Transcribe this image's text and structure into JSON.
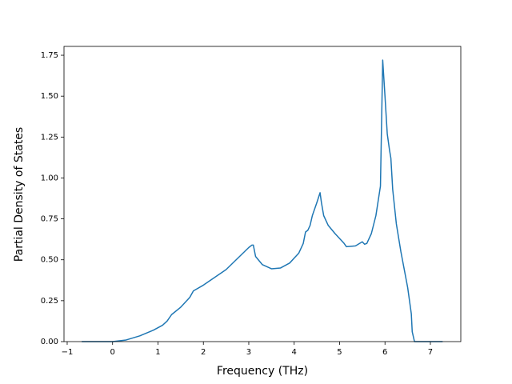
{
  "chart_data": {
    "type": "line",
    "xlabel": "Frequency (THz)",
    "ylabel": "Partial Density of States",
    "xlim": [
      -1.07,
      7.67
    ],
    "ylim": [
      0,
      1.804
    ],
    "xticks": [
      {
        "value": -1,
        "label": "−1"
      },
      0,
      1,
      2,
      3,
      4,
      5,
      6,
      7
    ],
    "yticks": [
      {
        "value": 0,
        "label": "0.00"
      },
      {
        "value": 0.25,
        "label": "0.25"
      },
      {
        "value": 0.5,
        "label": "0.50"
      },
      {
        "value": 0.75,
        "label": "0.75"
      },
      {
        "value": 1,
        "label": "1.00"
      },
      {
        "value": 1.25,
        "label": "1.25"
      },
      {
        "value": 1.5,
        "label": "1.50"
      },
      {
        "value": 1.75,
        "label": "1.75"
      }
    ],
    "x": [
      -0.68,
      0,
      0.3,
      0.6,
      0.9,
      1.1,
      1.2,
      1.3,
      1.5,
      1.7,
      1.78,
      2.0,
      2.5,
      3.0,
      3.07,
      3.1,
      3.15,
      3.3,
      3.5,
      3.7,
      3.9,
      4.1,
      4.2,
      4.25,
      4.3,
      4.35,
      4.4,
      4.5,
      4.57,
      4.6,
      4.65,
      4.75,
      4.9,
      5.1,
      5.15,
      5.35,
      5.5,
      5.55,
      5.6,
      5.7,
      5.8,
      5.9,
      5.95,
      6.0,
      6.05,
      6.1,
      6.13,
      6.17,
      6.25,
      6.35,
      6.5,
      6.58,
      6.6,
      6.65,
      7.27
    ],
    "series": [
      {
        "color": "#1f77b4",
        "values": [
          0,
          0,
          0.01,
          0.035,
          0.07,
          0.1,
          0.125,
          0.165,
          0.21,
          0.27,
          0.31,
          0.345,
          0.44,
          0.575,
          0.59,
          0.59,
          0.52,
          0.47,
          0.445,
          0.45,
          0.48,
          0.54,
          0.6,
          0.67,
          0.68,
          0.71,
          0.77,
          0.85,
          0.91,
          0.85,
          0.77,
          0.71,
          0.66,
          0.6,
          0.58,
          0.585,
          0.61,
          0.595,
          0.6,
          0.66,
          0.77,
          0.95,
          1.72,
          1.5,
          1.27,
          1.17,
          1.12,
          0.93,
          0.72,
          0.55,
          0.33,
          0.17,
          0.06,
          0,
          0
        ]
      }
    ]
  }
}
